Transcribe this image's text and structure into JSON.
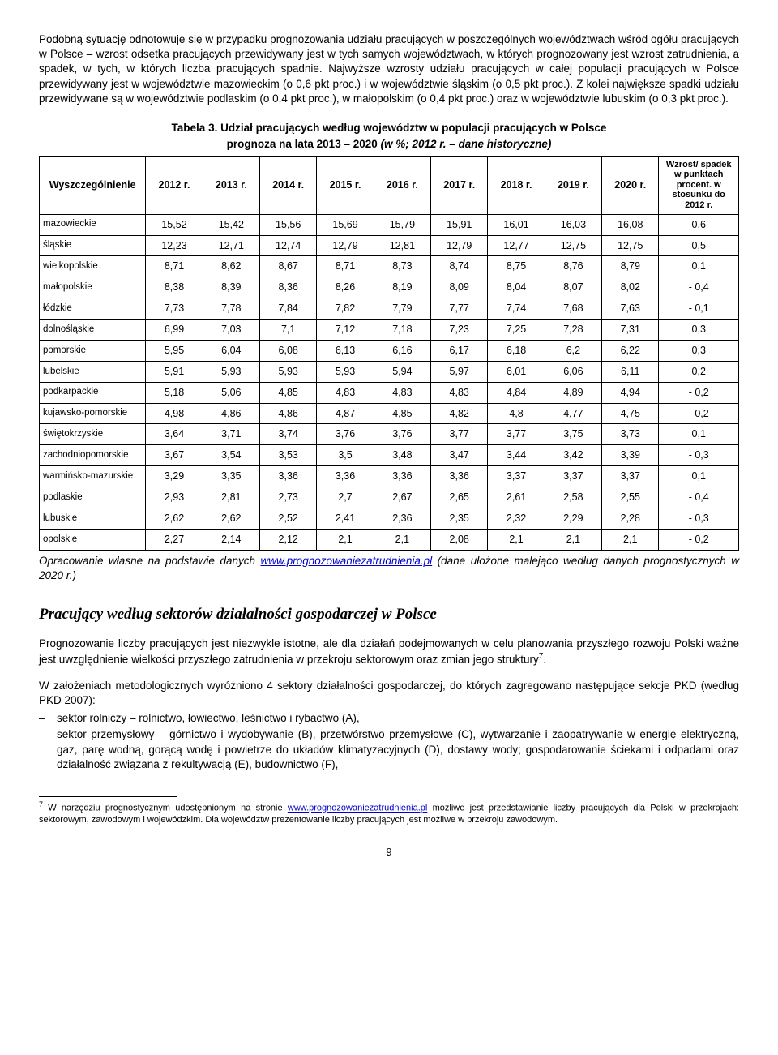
{
  "para1": "Podobną sytuację odnotowuje się w przypadku prognozowania udziału pracujących w poszczególnych województwach wśród ogółu pracujących w Polsce – wzrost odsetka pracujących przewidywany jest w tych samych województwach, w których prognozowany jest wzrost zatrudnienia, a spadek, w tych, w których liczba pracujących spadnie. Najwyższe wzrosty udziału pracujących w całej populacji pracujących w Polsce przewidywany jest w województwie mazowieckim (o 0,6 pkt proc.) i w województwie śląskim (o 0,5 pkt proc.). Z kolei największe spadki udziału przewidywane są w województwie podlaskim (o 0,4 pkt proc.), w małopolskim (o 0,4 pkt proc.) oraz w województwie lubuskim (o 0,3 pkt proc.).",
  "table_title": "Tabela 3. Udział pracujących według województw w populacji pracujących w Polsce",
  "table_subtitle_plain": "prognoza na lata 2013 – 2020 ",
  "table_subtitle_italic": "(w %; 2012 r. – dane historyczne)",
  "columns": [
    "Wyszczególnienie",
    "2012 r.",
    "2013 r.",
    "2014 r.",
    "2015 r.",
    "2016 r.",
    "2017 r.",
    "2018 r.",
    "2019 r.",
    "2020 r.",
    "Wzrost/ spadek w punktach procent. w stosunku do 2012 r."
  ],
  "rows": [
    [
      "mazowieckie",
      "15,52",
      "15,42",
      "15,56",
      "15,69",
      "15,79",
      "15,91",
      "16,01",
      "16,03",
      "16,08",
      "0,6"
    ],
    [
      "śląskie",
      "12,23",
      "12,71",
      "12,74",
      "12,79",
      "12,81",
      "12,79",
      "12,77",
      "12,75",
      "12,75",
      "0,5"
    ],
    [
      "wielkopolskie",
      "8,71",
      "8,62",
      "8,67",
      "8,71",
      "8,73",
      "8,74",
      "8,75",
      "8,76",
      "8,79",
      "0,1"
    ],
    [
      "małopolskie",
      "8,38",
      "8,39",
      "8,36",
      "8,26",
      "8,19",
      "8,09",
      "8,04",
      "8,07",
      "8,02",
      "- 0,4"
    ],
    [
      "łódzkie",
      "7,73",
      "7,78",
      "7,84",
      "7,82",
      "7,79",
      "7,77",
      "7,74",
      "7,68",
      "7,63",
      "- 0,1"
    ],
    [
      "dolnośląskie",
      "6,99",
      "7,03",
      "7,1",
      "7,12",
      "7,18",
      "7,23",
      "7,25",
      "7,28",
      "7,31",
      "0,3"
    ],
    [
      "pomorskie",
      "5,95",
      "6,04",
      "6,08",
      "6,13",
      "6,16",
      "6,17",
      "6,18",
      "6,2",
      "6,22",
      "0,3"
    ],
    [
      "lubelskie",
      "5,91",
      "5,93",
      "5,93",
      "5,93",
      "5,94",
      "5,97",
      "6,01",
      "6,06",
      "6,11",
      "0,2"
    ],
    [
      "podkarpackie",
      "5,18",
      "5,06",
      "4,85",
      "4,83",
      "4,83",
      "4,83",
      "4,84",
      "4,89",
      "4,94",
      "- 0,2"
    ],
    [
      "kujawsko-pomorskie",
      "4,98",
      "4,86",
      "4,86",
      "4,87",
      "4,85",
      "4,82",
      "4,8",
      "4,77",
      "4,75",
      "- 0,2"
    ],
    [
      "świętokrzyskie",
      "3,64",
      "3,71",
      "3,74",
      "3,76",
      "3,76",
      "3,77",
      "3,77",
      "3,75",
      "3,73",
      "0,1"
    ],
    [
      "zachodniopomorskie",
      "3,67",
      "3,54",
      "3,53",
      "3,5",
      "3,48",
      "3,47",
      "3,44",
      "3,42",
      "3,39",
      "- 0,3"
    ],
    [
      "warmińsko-mazurskie",
      "3,29",
      "3,35",
      "3,36",
      "3,36",
      "3,36",
      "3,36",
      "3,37",
      "3,37",
      "3,37",
      "0,1"
    ],
    [
      "podlaskie",
      "2,93",
      "2,81",
      "2,73",
      "2,7",
      "2,67",
      "2,65",
      "2,61",
      "2,58",
      "2,55",
      "- 0,4"
    ],
    [
      "lubuskie",
      "2,62",
      "2,62",
      "2,52",
      "2,41",
      "2,36",
      "2,35",
      "2,32",
      "2,29",
      "2,28",
      "- 0,3"
    ],
    [
      "opolskie",
      "2,27",
      "2,14",
      "2,12",
      "2,1",
      "2,1",
      "2,08",
      "2,1",
      "2,1",
      "2,1",
      "- 0,2"
    ]
  ],
  "table_note_pre": "Opracowanie własne na podstawie danych ",
  "table_note_link": "www.prognozowaniezatrudnienia.pl",
  "table_note_post": " (dane ułożone malejąco według danych prognostycznych w 2020 r.)",
  "section_heading": "Pracujący według sektorów działalności gospodarczej w Polsce",
  "para2_pre": "Prognozowanie liczby pracujących jest niezwykle istotne, ale dla działań podejmowanych w celu planowania przyszłego rozwoju Polski ważne jest uwzględnienie wielkości przyszłego zatrudnienia w przekroju sektorowym oraz zmian jego struktury",
  "para2_post": ".",
  "para3": "W założeniach metodologicznych wyróżniono 4 sektory działalności gospodarczej, do których zagregowano następujące sekcje PKD (według PKD 2007):",
  "bullets": [
    "sektor rolniczy – rolnictwo, łowiectwo, leśnictwo i rybactwo (A),",
    "sektor przemysłowy – górnictwo i wydobywanie (B), przetwórstwo przemysłowe (C), wytwarzanie i zaopatrywanie w energię elektryczną, gaz, parę wodną, gorącą wodę i powietrze do układów klimatyzacyjnych (D), dostawy wody; gospodarowanie ściekami i odpadami oraz działalność związana z rekultywacją (E), budownictwo (F),"
  ],
  "footnote_sup": "7",
  "footnote_pre": " W narzędziu prognostycznym udostępnionym na stronie ",
  "footnote_link": "www.prognozowaniezatrudnienia.pl",
  "footnote_post": " możliwe jest przedstawianie liczby pracujących dla Polski w przekrojach: sektorowym, zawodowym i wojewódzkim. Dla województw prezentowanie liczby pracujących  jest możliwe w przekroju zawodowym.",
  "page_number": "9"
}
